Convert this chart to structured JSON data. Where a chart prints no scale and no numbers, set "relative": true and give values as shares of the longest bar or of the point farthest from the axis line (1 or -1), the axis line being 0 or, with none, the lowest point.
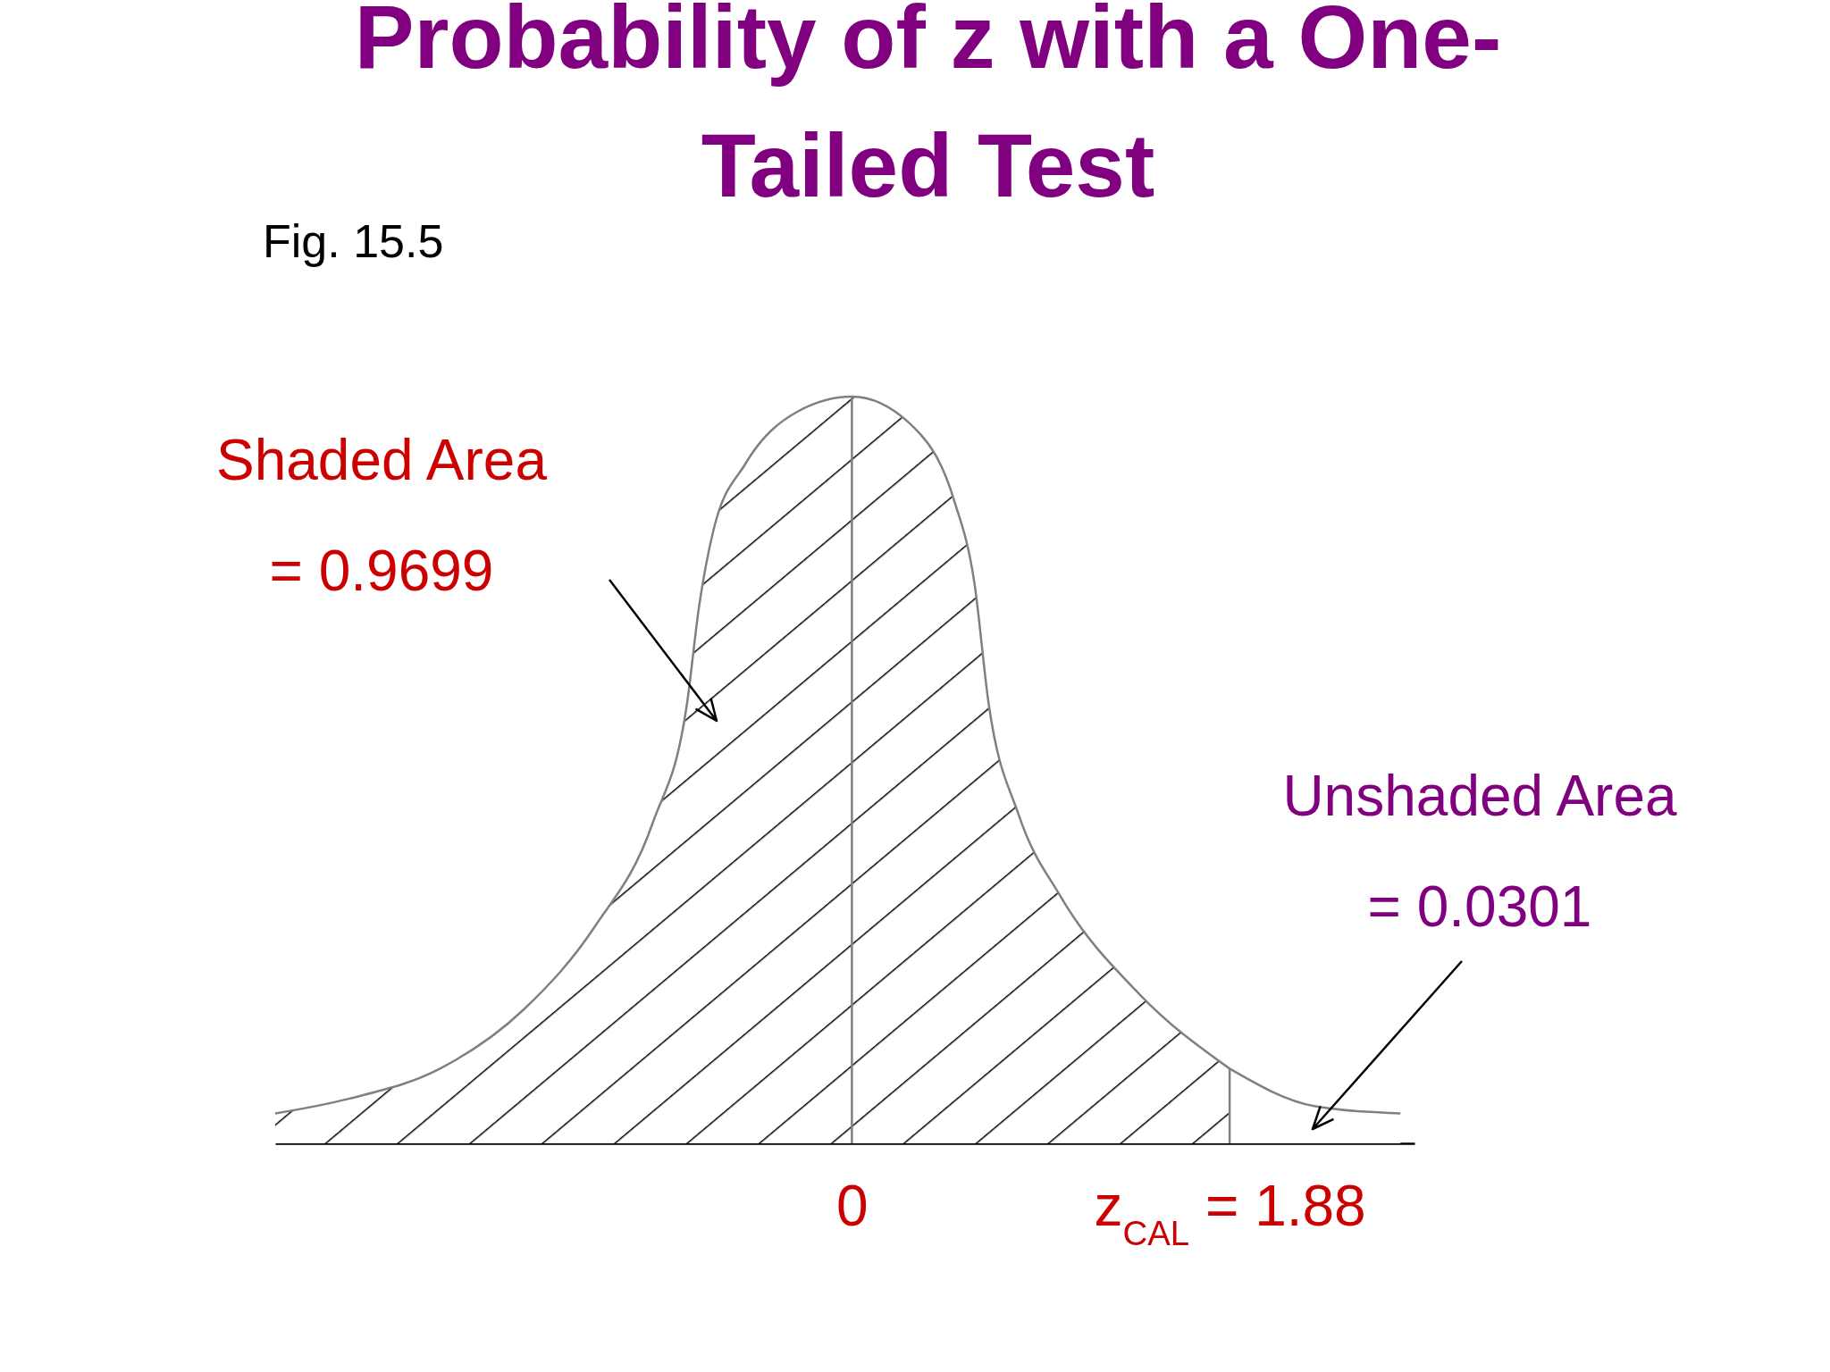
{
  "chart_data": {
    "type": "area",
    "title": "Probability of z with a One-Tailed Test",
    "relative": true,
    "xlim": [
      -2.87,
      2.8
    ],
    "xticks": [
      0,
      {
        "value": 1.88,
        "label": "z$_{CAL}$ = 1.88"
      }
    ],
    "series": [
      {
        "color": "#808080",
        "x": [
          -2.87,
          -2.5,
          -2.05,
          -1.63,
          -1.28,
          -0.99,
          -0.82,
          -0.76,
          -0.69,
          -0.53,
          -0.27,
          0,
          0.34,
          0.51,
          0.61,
          0.68,
          0.83,
          1.04,
          1.43,
          1.88
        ],
        "values": [
          0.04,
          0.06,
          0.1,
          0.18,
          0.29,
          0.43,
          0.59,
          0.72,
          0.82,
          0.91,
          0.98,
          1,
          0.95,
          0.86,
          0.75,
          0.59,
          0.44,
          0.33,
          0.2,
          0.1
        ]
      },
      {
        "color": "#808080",
        "x": [
          1.88,
          2.3,
          2.73
        ],
        "values": [
          0.1,
          0.05,
          0.04
        ]
      }
    ],
    "ref_lines": [
      {
        "axis": "x",
        "value": 0,
        "color": "#808080"
      },
      {
        "axis": "x",
        "value": 1.88,
        "color": "#808080"
      }
    ],
    "annotations": [
      "Fig. 15.5",
      "Shaded Area\n= 0.9699",
      "Unshaded Area\n= 0.0301"
    ]
  }
}
